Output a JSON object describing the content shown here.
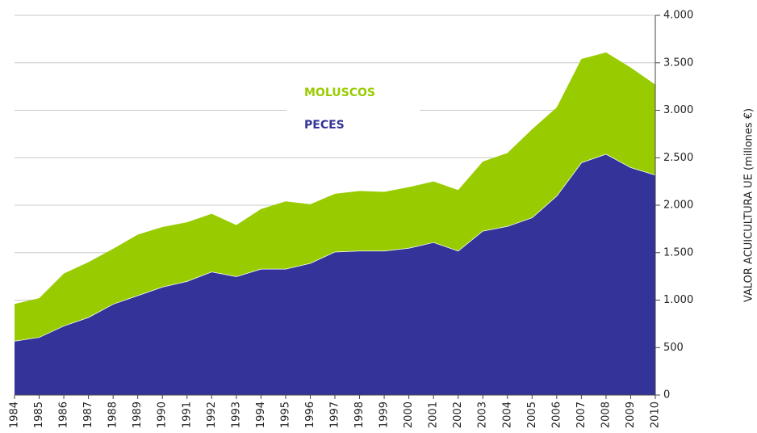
{
  "chart_data": {
    "type": "stacked_area",
    "y_axis_label": "VALOR ACUICULTURA UE (millones €)",
    "categories": [
      "1984",
      "1985",
      "1986",
      "1987",
      "1988",
      "1989",
      "1990",
      "1991",
      "1992",
      "1993",
      "1994",
      "1995",
      "1996",
      "1997",
      "1998",
      "1999",
      "2000",
      "2001",
      "2002",
      "2003",
      "2004",
      "2005",
      "2006",
      "2007",
      "2008",
      "2009",
      "2010"
    ],
    "series": [
      {
        "name": "PECES",
        "color": "#333399",
        "values": [
          570,
          610,
          730,
          820,
          960,
          1050,
          1140,
          1200,
          1300,
          1250,
          1330,
          1330,
          1390,
          1510,
          1520,
          1520,
          1550,
          1610,
          1520,
          1730,
          1780,
          1870,
          2100,
          2450,
          2540,
          2400,
          2320
        ]
      },
      {
        "name": "MOLUSCOS",
        "color": "#99cc00",
        "values": [
          390,
          410,
          550,
          580,
          580,
          640,
          630,
          620,
          610,
          540,
          630,
          710,
          620,
          610,
          630,
          620,
          640,
          640,
          640,
          730,
          770,
          930,
          930,
          1090,
          1070,
          1050,
          950
        ]
      }
    ],
    "ylim": [
      0,
      4000
    ],
    "yticks": [
      0,
      500,
      {
        "value": 1000,
        "label": "1.000"
      },
      {
        "value": 1500,
        "label": "1.500"
      },
      {
        "value": 2000,
        "label": "2.000"
      },
      {
        "value": 2500,
        "label": "2.500"
      },
      {
        "value": 3000,
        "label": "3.000"
      },
      {
        "value": 3500,
        "label": "3.500"
      },
      {
        "value": 4000,
        "label": "4.000"
      }
    ],
    "grid": true,
    "y_axis_side": "right"
  }
}
